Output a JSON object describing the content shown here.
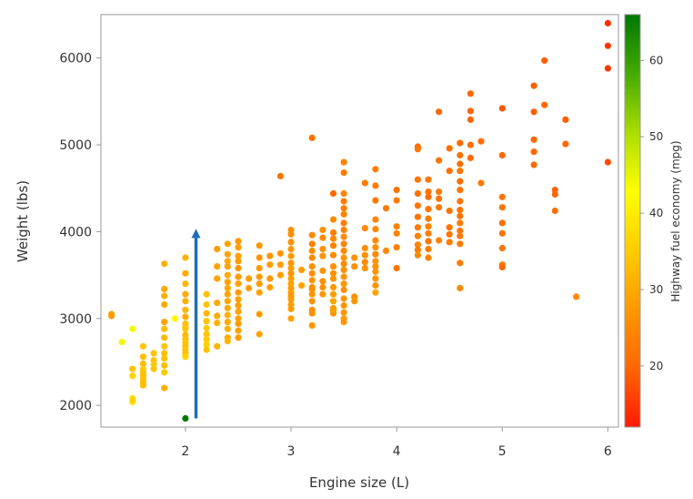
{
  "chart_data": {
    "type": "scatter",
    "title": "",
    "xlabel": "Engine size (L)",
    "ylabel": "Weight (lbs)",
    "xlim": [
      1.2,
      6.1
    ],
    "ylim": [
      1750,
      6500
    ],
    "x_ticks": [
      2,
      3,
      4,
      5,
      6
    ],
    "y_ticks": [
      2000,
      3000,
      4000,
      5000,
      6000
    ],
    "grid": false,
    "colorbar": {
      "label": "Highway fuel economy (mpg)",
      "range": [
        12,
        66
      ],
      "ticks": [
        20,
        30,
        40,
        50,
        60
      ],
      "colors": [
        "#ff1a00",
        "#ff6600",
        "#ff9900",
        "#ffcc00",
        "#ffff00",
        "#aadd00",
        "#44aa00",
        "#007700"
      ]
    },
    "annotation": {
      "type": "arrow",
      "color": "#1f6fb5",
      "from": [
        2.1,
        1850
      ],
      "to": [
        2.1,
        3980
      ]
    },
    "points": [
      [
        1.3,
        3030,
        28
      ],
      [
        1.3,
        3050,
        28
      ],
      [
        1.4,
        2730,
        44
      ],
      [
        1.5,
        2880,
        44
      ],
      [
        1.5,
        2420,
        34
      ],
      [
        1.5,
        2340,
        36
      ],
      [
        1.5,
        2080,
        38
      ],
      [
        1.5,
        2040,
        38
      ],
      [
        1.5,
        2060,
        36
      ],
      [
        1.6,
        2680,
        34
      ],
      [
        1.6,
        2560,
        33
      ],
      [
        1.6,
        2480,
        33
      ],
      [
        1.6,
        2420,
        35
      ],
      [
        1.6,
        2380,
        34
      ],
      [
        1.6,
        2340,
        33
      ],
      [
        1.6,
        2300,
        34
      ],
      [
        1.6,
        2260,
        33
      ],
      [
        1.6,
        2230,
        33
      ],
      [
        1.7,
        2600,
        34
      ],
      [
        1.7,
        2520,
        34
      ],
      [
        1.7,
        2470,
        35
      ],
      [
        1.7,
        2420,
        34
      ],
      [
        1.8,
        3630,
        31
      ],
      [
        1.8,
        3340,
        30
      ],
      [
        1.8,
        3260,
        31
      ],
      [
        1.8,
        3160,
        30
      ],
      [
        1.8,
        2960,
        29
      ],
      [
        1.8,
        2880,
        33
      ],
      [
        1.8,
        2780,
        32
      ],
      [
        1.8,
        2680,
        34
      ],
      [
        1.8,
        2600,
        33
      ],
      [
        1.8,
        2540,
        34
      ],
      [
        1.8,
        2460,
        33
      ],
      [
        1.8,
        2380,
        35
      ],
      [
        1.8,
        2200,
        31
      ],
      [
        1.9,
        3000,
        42
      ],
      [
        2.0,
        3700,
        31
      ],
      [
        2.0,
        3520,
        30
      ],
      [
        2.0,
        3400,
        32
      ],
      [
        2.0,
        3280,
        30
      ],
      [
        2.0,
        3200,
        31
      ],
      [
        2.0,
        3100,
        32
      ],
      [
        2.0,
        3020,
        30
      ],
      [
        2.0,
        2940,
        33
      ],
      [
        2.0,
        2880,
        34
      ],
      [
        2.0,
        2810,
        32
      ],
      [
        2.0,
        2760,
        33
      ],
      [
        2.0,
        2720,
        34
      ],
      [
        2.0,
        2680,
        33
      ],
      [
        2.0,
        2640,
        34
      ],
      [
        2.0,
        2600,
        33
      ],
      [
        2.0,
        2560,
        36
      ],
      [
        2.0,
        2900,
        34
      ],
      [
        2.0,
        1850,
        66
      ],
      [
        2.2,
        3280,
        33
      ],
      [
        2.2,
        3160,
        34
      ],
      [
        2.2,
        3060,
        32
      ],
      [
        2.2,
        2970,
        34
      ],
      [
        2.2,
        2890,
        35
      ],
      [
        2.2,
        2820,
        34
      ],
      [
        2.2,
        2760,
        35
      ],
      [
        2.2,
        2700,
        36
      ],
      [
        2.2,
        2640,
        34
      ],
      [
        2.3,
        3800,
        28
      ],
      [
        2.3,
        3600,
        29
      ],
      [
        2.3,
        3460,
        29
      ],
      [
        2.3,
        3180,
        30
      ],
      [
        2.3,
        3030,
        30
      ],
      [
        2.3,
        2950,
        31
      ],
      [
        2.3,
        2680,
        31
      ],
      [
        2.4,
        3860,
        29
      ],
      [
        2.4,
        3740,
        29
      ],
      [
        2.4,
        3660,
        30
      ],
      [
        2.4,
        3600,
        29
      ],
      [
        2.4,
        3500,
        30
      ],
      [
        2.4,
        3420,
        29
      ],
      [
        2.4,
        3350,
        30
      ],
      [
        2.4,
        3280,
        29
      ],
      [
        2.4,
        3200,
        30
      ],
      [
        2.4,
        3120,
        30
      ],
      [
        2.4,
        3040,
        31
      ],
      [
        2.4,
        2960,
        30
      ],
      [
        2.4,
        2880,
        31
      ],
      [
        2.4,
        2780,
        30
      ],
      [
        2.4,
        2740,
        32
      ],
      [
        2.5,
        3890,
        27
      ],
      [
        2.5,
        3820,
        28
      ],
      [
        2.5,
        3720,
        29
      ],
      [
        2.5,
        3660,
        28
      ],
      [
        2.5,
        3580,
        27
      ],
      [
        2.5,
        3480,
        28
      ],
      [
        2.5,
        3400,
        29
      ],
      [
        2.5,
        3300,
        28
      ],
      [
        2.5,
        3220,
        29
      ],
      [
        2.5,
        3150,
        28
      ],
      [
        2.5,
        3080,
        29
      ],
      [
        2.5,
        3000,
        29
      ],
      [
        2.5,
        2940,
        28
      ],
      [
        2.5,
        2860,
        29
      ],
      [
        2.5,
        2780,
        28
      ],
      [
        2.6,
        3460,
        28
      ],
      [
        2.6,
        3350,
        28
      ],
      [
        2.7,
        3840,
        27
      ],
      [
        2.7,
        3700,
        27
      ],
      [
        2.7,
        3580,
        28
      ],
      [
        2.7,
        3480,
        28
      ],
      [
        2.7,
        3400,
        28
      ],
      [
        2.7,
        3300,
        29
      ],
      [
        2.7,
        3050,
        28
      ],
      [
        2.7,
        2820,
        29
      ],
      [
        2.8,
        3720,
        27
      ],
      [
        2.8,
        3620,
        28
      ],
      [
        2.8,
        3460,
        27
      ],
      [
        2.8,
        3360,
        28
      ],
      [
        2.9,
        4640,
        22
      ],
      [
        2.9,
        3750,
        27
      ],
      [
        2.9,
        3620,
        28
      ],
      [
        2.9,
        3500,
        28
      ],
      [
        3.0,
        4020,
        26
      ],
      [
        3.0,
        3970,
        26
      ],
      [
        3.0,
        3880,
        26
      ],
      [
        3.0,
        3800,
        27
      ],
      [
        3.0,
        3720,
        28
      ],
      [
        3.0,
        3640,
        27
      ],
      [
        3.0,
        3580,
        28
      ],
      [
        3.0,
        3520,
        27
      ],
      [
        3.0,
        3460,
        28
      ],
      [
        3.0,
        3400,
        29
      ],
      [
        3.0,
        3350,
        28
      ],
      [
        3.0,
        3300,
        28
      ],
      [
        3.0,
        3260,
        27
      ],
      [
        3.0,
        3220,
        28
      ],
      [
        3.0,
        3160,
        28
      ],
      [
        3.0,
        3000,
        29
      ],
      [
        3.0,
        3110,
        28
      ],
      [
        3.1,
        3560,
        28
      ],
      [
        3.1,
        3380,
        29
      ],
      [
        3.2,
        5080,
        22
      ],
      [
        3.2,
        3960,
        25
      ],
      [
        3.2,
        3860,
        24
      ],
      [
        3.2,
        3780,
        26
      ],
      [
        3.2,
        3700,
        25
      ],
      [
        3.2,
        3600,
        26
      ],
      [
        3.2,
        3520,
        26
      ],
      [
        3.2,
        3440,
        27
      ],
      [
        3.2,
        3360,
        26
      ],
      [
        3.2,
        3280,
        27
      ],
      [
        3.2,
        3200,
        27
      ],
      [
        3.2,
        3100,
        26
      ],
      [
        3.2,
        3060,
        26
      ],
      [
        3.2,
        2920,
        27
      ],
      [
        3.2,
        3340,
        26
      ],
      [
        3.3,
        4020,
        26
      ],
      [
        3.3,
        3930,
        25
      ],
      [
        3.3,
        3800,
        26
      ],
      [
        3.3,
        3720,
        26
      ],
      [
        3.3,
        3550,
        27
      ],
      [
        3.3,
        3430,
        26
      ],
      [
        3.3,
        3360,
        26
      ],
      [
        3.3,
        3280,
        27
      ],
      [
        3.4,
        4440,
        20
      ],
      [
        3.4,
        4140,
        25
      ],
      [
        3.4,
        3990,
        24
      ],
      [
        3.4,
        3920,
        25
      ],
      [
        3.4,
        3840,
        24
      ],
      [
        3.4,
        3730,
        25
      ],
      [
        3.4,
        3600,
        26
      ],
      [
        3.4,
        3520,
        26
      ],
      [
        3.4,
        3460,
        27
      ],
      [
        3.4,
        3360,
        27
      ],
      [
        3.4,
        3280,
        28
      ],
      [
        3.4,
        3200,
        29
      ],
      [
        3.4,
        3120,
        28
      ],
      [
        3.4,
        3060,
        27
      ],
      [
        3.4,
        3090,
        28
      ],
      [
        3.5,
        4800,
        24
      ],
      [
        3.5,
        4680,
        23
      ],
      [
        3.5,
        4440,
        24
      ],
      [
        3.5,
        4350,
        23
      ],
      [
        3.5,
        4270,
        24
      ],
      [
        3.5,
        4200,
        24
      ],
      [
        3.5,
        4100,
        23
      ],
      [
        3.5,
        4020,
        24
      ],
      [
        3.5,
        3940,
        25
      ],
      [
        3.5,
        3860,
        24
      ],
      [
        3.5,
        3780,
        25
      ],
      [
        3.5,
        3700,
        26
      ],
      [
        3.5,
        3630,
        25
      ],
      [
        3.5,
        3560,
        26
      ],
      [
        3.5,
        3480,
        26
      ],
      [
        3.5,
        3400,
        27
      ],
      [
        3.5,
        3330,
        26
      ],
      [
        3.5,
        3230,
        27
      ],
      [
        3.5,
        3150,
        27
      ],
      [
        3.5,
        3070,
        27
      ],
      [
        3.5,
        3000,
        28
      ],
      [
        3.5,
        2960,
        27
      ],
      [
        3.6,
        3700,
        26
      ],
      [
        3.6,
        3600,
        26
      ],
      [
        3.6,
        3250,
        26
      ],
      [
        3.6,
        3200,
        27
      ],
      [
        3.7,
        4560,
        23
      ],
      [
        3.7,
        4040,
        25
      ],
      [
        3.7,
        3810,
        26
      ],
      [
        3.7,
        3730,
        26
      ],
      [
        3.7,
        3650,
        25
      ],
      [
        3.7,
        3580,
        26
      ],
      [
        3.8,
        4720,
        23
      ],
      [
        3.8,
        4530,
        23
      ],
      [
        3.8,
        4360,
        23
      ],
      [
        3.8,
        4140,
        24
      ],
      [
        3.8,
        4030,
        25
      ],
      [
        3.8,
        3900,
        25
      ],
      [
        3.8,
        3820,
        26
      ],
      [
        3.8,
        3740,
        25
      ],
      [
        3.8,
        3660,
        26
      ],
      [
        3.8,
        3600,
        26
      ],
      [
        3.8,
        3540,
        27
      ],
      [
        3.8,
        3460,
        27
      ],
      [
        3.8,
        3380,
        27
      ],
      [
        3.8,
        3300,
        29
      ],
      [
        3.9,
        4270,
        23
      ],
      [
        3.9,
        3780,
        25
      ],
      [
        4.0,
        4480,
        22
      ],
      [
        4.0,
        4360,
        23
      ],
      [
        4.0,
        4060,
        24
      ],
      [
        4.0,
        3980,
        24
      ],
      [
        4.0,
        3820,
        24
      ],
      [
        4.0,
        3580,
        22
      ],
      [
        4.2,
        4980,
        21
      ],
      [
        4.2,
        4950,
        22
      ],
      [
        4.2,
        4600,
        22
      ],
      [
        4.2,
        4440,
        21
      ],
      [
        4.2,
        4300,
        22
      ],
      [
        4.2,
        4170,
        22
      ],
      [
        4.2,
        4050,
        23
      ],
      [
        4.2,
        3950,
        24
      ],
      [
        4.2,
        3850,
        24
      ],
      [
        4.2,
        3790,
        23
      ],
      [
        4.2,
        3730,
        25
      ],
      [
        4.3,
        4600,
        22
      ],
      [
        4.3,
        4460,
        22
      ],
      [
        4.3,
        4400,
        21
      ],
      [
        4.3,
        4260,
        22
      ],
      [
        4.3,
        4150,
        23
      ],
      [
        4.3,
        4060,
        24
      ],
      [
        4.3,
        3980,
        23
      ],
      [
        4.3,
        3890,
        22
      ],
      [
        4.3,
        3800,
        23
      ],
      [
        4.3,
        3700,
        24
      ],
      [
        4.4,
        5380,
        20
      ],
      [
        4.4,
        4820,
        22
      ],
      [
        4.4,
        4460,
        23
      ],
      [
        4.4,
        4380,
        22
      ],
      [
        4.4,
        4280,
        23
      ],
      [
        4.4,
        3900,
        24
      ],
      [
        4.5,
        4960,
        21
      ],
      [
        4.5,
        4700,
        21
      ],
      [
        4.5,
        4240,
        22
      ],
      [
        4.5,
        4050,
        22
      ],
      [
        4.5,
        3970,
        22
      ],
      [
        4.5,
        3880,
        23
      ],
      [
        4.6,
        5020,
        20
      ],
      [
        4.6,
        4880,
        21
      ],
      [
        4.6,
        4780,
        21
      ],
      [
        4.6,
        4700,
        22
      ],
      [
        4.6,
        4580,
        21
      ],
      [
        4.6,
        4480,
        22
      ],
      [
        4.6,
        4350,
        22
      ],
      [
        4.6,
        4250,
        22
      ],
      [
        4.6,
        4180,
        22
      ],
      [
        4.6,
        4100,
        23
      ],
      [
        4.6,
        4010,
        22
      ],
      [
        4.6,
        3950,
        23
      ],
      [
        4.6,
        3860,
        23
      ],
      [
        4.6,
        3640,
        23
      ],
      [
        4.6,
        3350,
        25
      ],
      [
        4.7,
        5590,
        20
      ],
      [
        4.7,
        5390,
        20
      ],
      [
        4.7,
        5290,
        20
      ],
      [
        4.7,
        5000,
        21
      ],
      [
        4.7,
        4850,
        21
      ],
      [
        4.8,
        5040,
        21
      ],
      [
        4.8,
        4560,
        22
      ],
      [
        5.0,
        5420,
        18
      ],
      [
        5.0,
        4880,
        20
      ],
      [
        5.0,
        4400,
        22
      ],
      [
        5.0,
        4280,
        22
      ],
      [
        5.0,
        4100,
        21
      ],
      [
        5.0,
        3980,
        22
      ],
      [
        5.0,
        3810,
        22
      ],
      [
        5.0,
        3620,
        22
      ],
      [
        5.0,
        3590,
        20
      ],
      [
        5.3,
        5680,
        19
      ],
      [
        5.3,
        5380,
        19
      ],
      [
        5.3,
        5060,
        20
      ],
      [
        5.3,
        4920,
        20
      ],
      [
        5.3,
        4770,
        20
      ],
      [
        5.4,
        5970,
        19
      ],
      [
        5.4,
        5460,
        20
      ],
      [
        5.5,
        4480,
        20
      ],
      [
        5.5,
        4430,
        20
      ],
      [
        5.5,
        4240,
        21
      ],
      [
        5.6,
        5290,
        19
      ],
      [
        5.6,
        5010,
        20
      ],
      [
        5.7,
        3250,
        25
      ],
      [
        6.0,
        6400,
        14
      ],
      [
        6.0,
        6140,
        15
      ],
      [
        6.0,
        5880,
        15
      ],
      [
        6.0,
        4800,
        17
      ]
    ]
  }
}
